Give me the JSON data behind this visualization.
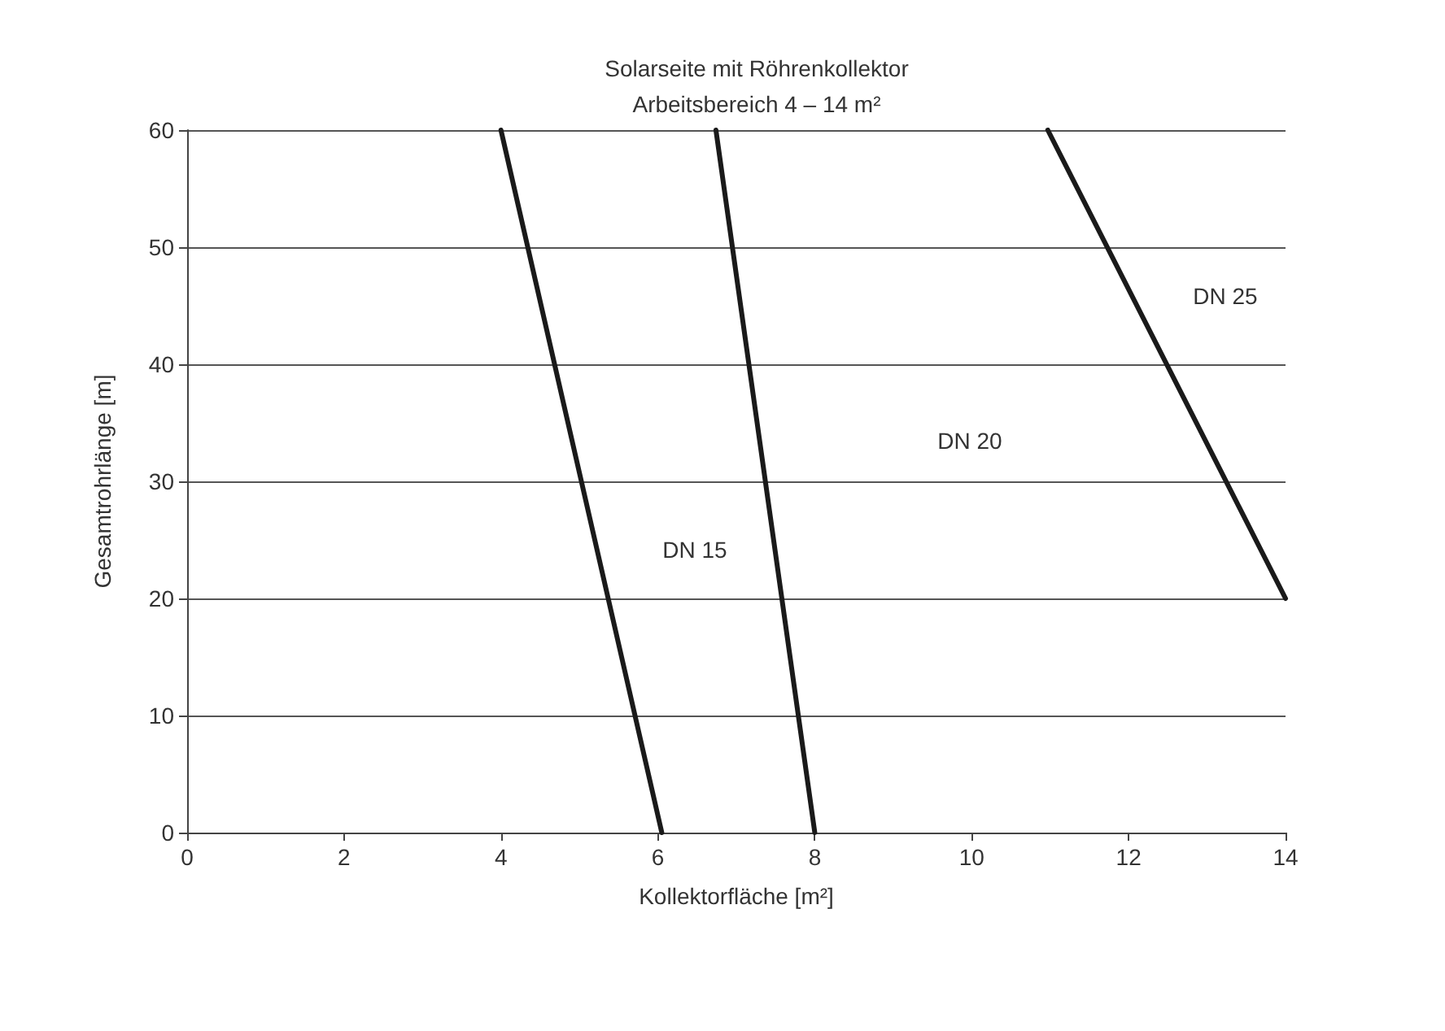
{
  "chart_data": {
    "type": "line",
    "title": "Solarseite mit Röhrenkollektor",
    "subtitle": "Arbeitsbereich 4 – 14 m²",
    "xlabel": "Kollektorfläche [m²]",
    "ylabel": "Gesamtrohrlänge [m]",
    "series": [
      {
        "color": "#1a1a1a",
        "x": [
          4,
          6.05
        ],
        "values": [
          60,
          0
        ]
      },
      {
        "color": "#1a1a1a",
        "x": [
          6.74,
          8
        ],
        "values": [
          60,
          0
        ]
      },
      {
        "color": "#1a1a1a",
        "x": [
          10.97,
          14
        ],
        "values": [
          60,
          20
        ]
      }
    ],
    "xlim": [
      0,
      14
    ],
    "xticks": [
      0,
      2,
      4,
      6,
      8,
      10,
      12,
      14
    ],
    "ylim": [
      0,
      60
    ],
    "yticks": [
      0,
      10,
      20,
      30,
      40,
      50,
      60
    ],
    "grid": "y",
    "marker": "none",
    "line_style": "solid",
    "annotations": [
      "DN 15",
      "DN 20",
      "DN 25"
    ]
  }
}
